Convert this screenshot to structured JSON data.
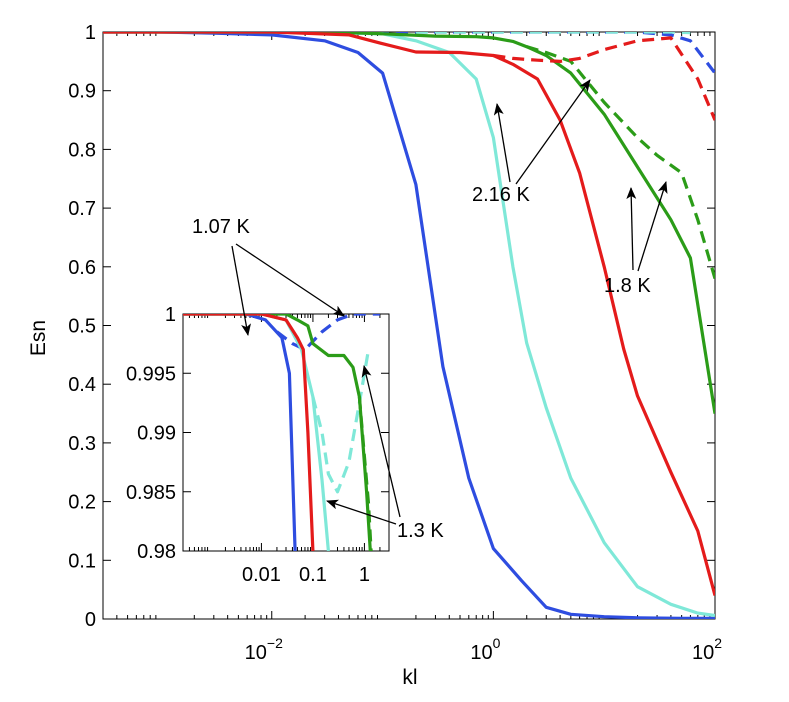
{
  "chart_data": [
    {
      "type": "line",
      "name": "main",
      "xscale": "log",
      "xlim": [
        0.0003,
        100
      ],
      "ylim": [
        0,
        1
      ],
      "xlabel": "kl",
      "ylabel": "Esn",
      "xticks": [
        {
          "value": 0.01,
          "base": "10",
          "exp": "−2"
        },
        {
          "value": 1,
          "base": "10",
          "exp": "0"
        },
        {
          "value": 100,
          "base": "10",
          "exp": "2"
        }
      ],
      "yticks": [
        {
          "value": 0,
          "label": "0"
        },
        {
          "value": 0.1,
          "label": "0.1"
        },
        {
          "value": 0.2,
          "label": "0.2"
        },
        {
          "value": 0.3,
          "label": "0.3"
        },
        {
          "value": 0.4,
          "label": "0.4"
        },
        {
          "value": 0.5,
          "label": "0.5"
        },
        {
          "value": 0.6,
          "label": "0.6"
        },
        {
          "value": 0.7,
          "label": "0.7"
        },
        {
          "value": 0.8,
          "label": "0.8"
        },
        {
          "value": 0.9,
          "label": "0.9"
        },
        {
          "value": 1,
          "label": "1"
        }
      ],
      "series": [
        {
          "name": "1.07 K solid",
          "color": "#2e4de0",
          "dash": false,
          "x": [
            0.0003,
            0.001,
            0.003,
            0.01,
            0.03,
            0.06,
            0.1,
            0.2,
            0.35,
            0.6,
            1.0,
            1.8,
            3,
            5,
            10,
            20,
            50,
            100
          ],
          "y": [
            1.0,
            1.0,
            0.998,
            0.995,
            0.985,
            0.965,
            0.93,
            0.74,
            0.43,
            0.24,
            0.12,
            0.065,
            0.02,
            0.008,
            0.004,
            0.002,
            0.001,
            0.001
          ]
        },
        {
          "name": "1.07 K dashed",
          "color": "#2e4de0",
          "dash": true,
          "x": [
            0.06,
            0.1,
            0.2,
            0.5,
            1,
            2,
            5,
            10,
            20,
            40,
            60,
            100
          ],
          "y": [
            0.998,
            0.999,
            1.0,
            1.0,
            1.0,
            1.0,
            1.0,
            1.0,
            1.0,
            0.995,
            0.985,
            0.93
          ]
        },
        {
          "name": "1.3 K solid",
          "color": "#7fe8d8",
          "dash": false,
          "x": [
            0.0003,
            0.01,
            0.03,
            0.1,
            0.2,
            0.4,
            0.7,
            1.0,
            1.5,
            2,
            3,
            5,
            10,
            20,
            40,
            70,
            100
          ],
          "y": [
            1.0,
            1.0,
            0.999,
            0.997,
            0.985,
            0.965,
            0.92,
            0.82,
            0.6,
            0.47,
            0.36,
            0.24,
            0.13,
            0.055,
            0.025,
            0.01,
            0.006
          ]
        },
        {
          "name": "1.3 K dashed",
          "color": "#7fe8d8",
          "dash": true,
          "x": [
            0.2,
            0.5,
            1,
            2,
            5,
            10,
            20,
            40,
            60
          ],
          "y": [
            1.0,
            1.0,
            1.0,
            1.0,
            1.0,
            1.0,
            1.0,
            1.0,
            0.999
          ]
        },
        {
          "name": "1.8 K solid",
          "color": "#2b9c18",
          "dash": false,
          "x": [
            0.0003,
            0.01,
            0.05,
            0.1,
            0.3,
            0.7,
            1.0,
            1.5,
            2,
            3,
            5,
            10,
            20,
            40,
            60,
            100
          ],
          "y": [
            1.0,
            1.0,
            0.999,
            0.997,
            0.993,
            0.992,
            0.99,
            0.984,
            0.975,
            0.96,
            0.93,
            0.86,
            0.77,
            0.68,
            0.615,
            0.35
          ]
        },
        {
          "name": "1.8 K dashed",
          "color": "#2b9c18",
          "dash": true,
          "x": [
            2,
            3,
            5,
            10,
            20,
            30,
            50,
            70,
            100
          ],
          "y": [
            0.975,
            0.965,
            0.95,
            0.88,
            0.82,
            0.79,
            0.76,
            0.68,
            0.58
          ]
        },
        {
          "name": "2.16 K solid",
          "color": "#e41b1b",
          "dash": false,
          "x": [
            0.0003,
            0.01,
            0.05,
            0.1,
            0.2,
            0.5,
            1,
            1.5,
            2.5,
            4,
            6,
            10,
            15,
            20,
            40,
            70,
            100
          ],
          "y": [
            1.0,
            1.0,
            0.995,
            0.98,
            0.966,
            0.965,
            0.96,
            0.945,
            0.92,
            0.85,
            0.76,
            0.6,
            0.46,
            0.38,
            0.25,
            0.15,
            0.04
          ]
        },
        {
          "name": "2.16 K dashed",
          "color": "#e41b1b",
          "dash": true,
          "x": [
            1,
            1.5,
            2.5,
            4,
            6,
            10,
            20,
            40,
            70,
            100
          ],
          "y": [
            0.96,
            0.955,
            0.952,
            0.95,
            0.955,
            0.97,
            0.985,
            0.99,
            0.92,
            0.85
          ]
        }
      ],
      "annotations": [
        {
          "text": "1.07 K"
        },
        {
          "text": "2.16 K"
        },
        {
          "text": "1.8 K"
        },
        {
          "text": "1.3 K"
        }
      ]
    },
    {
      "type": "line",
      "name": "inset",
      "xscale": "log",
      "xlim": [
        0.0003,
        3
      ],
      "ylim": [
        0.98,
        1.0
      ],
      "xticks": [
        {
          "value": 0.01,
          "label": "0.01"
        },
        {
          "value": 0.1,
          "label": "0.1"
        },
        {
          "value": 1,
          "label": "1"
        }
      ],
      "yticks": [
        {
          "value": 0.98,
          "label": "0.98"
        },
        {
          "value": 0.985,
          "label": "0.985"
        },
        {
          "value": 0.99,
          "label": "0.99"
        },
        {
          "value": 0.995,
          "label": "0.995"
        },
        {
          "value": 1,
          "label": "1"
        }
      ],
      "series": [
        {
          "name": "1.07 K solid",
          "color": "#2e4de0",
          "dash": false,
          "x": [
            0.0003,
            0.005,
            0.012,
            0.025,
            0.035,
            0.045
          ],
          "y": [
            1.0,
            1.0,
            0.9995,
            0.998,
            0.995,
            0.98
          ]
        },
        {
          "name": "1.07 K dashed",
          "color": "#2e4de0",
          "dash": true,
          "x": [
            0.02,
            0.04,
            0.07,
            0.15,
            0.3,
            0.6,
            1.0,
            2.0
          ],
          "y": [
            0.9985,
            0.9975,
            0.997,
            0.9985,
            0.9995,
            1.0,
            1.0,
            1.0
          ]
        },
        {
          "name": "1.3 K solid",
          "color": "#7fe8d8",
          "dash": false,
          "x": [
            0.0003,
            0.01,
            0.03,
            0.06,
            0.1,
            0.15,
            0.2
          ],
          "y": [
            1.0,
            1.0,
            0.9995,
            0.997,
            0.993,
            0.986,
            0.98
          ]
        },
        {
          "name": "1.3 K dashed",
          "color": "#7fe8d8",
          "dash": true,
          "x": [
            0.1,
            0.15,
            0.2,
            0.3,
            0.5,
            0.8,
            1.2
          ],
          "y": [
            0.993,
            0.99,
            0.9865,
            0.985,
            0.9875,
            0.9925,
            0.997
          ]
        },
        {
          "name": "1.8 K solid",
          "color": "#2b9c18",
          "dash": false,
          "x": [
            0.0003,
            0.01,
            0.03,
            0.05,
            0.08,
            0.1,
            0.2,
            0.4,
            0.6,
            0.8,
            1.1,
            1.3
          ],
          "y": [
            1.0,
            1.0,
            1.0,
            0.9995,
            0.999,
            0.9975,
            0.9965,
            0.9965,
            0.9955,
            0.993,
            0.985,
            0.98
          ]
        },
        {
          "name": "1.8 K dashed",
          "color": "#2b9c18",
          "dash": true,
          "x": [
            0.8,
            1.0,
            1.2,
            1.35
          ],
          "y": [
            0.993,
            0.988,
            0.984,
            0.98
          ]
        },
        {
          "name": "2.16 K solid",
          "color": "#e41b1b",
          "dash": false,
          "x": [
            0.0003,
            0.01,
            0.03,
            0.05,
            0.065,
            0.08,
            0.1
          ],
          "y": [
            1.0,
            1.0,
            0.9995,
            0.998,
            0.997,
            0.99,
            0.98
          ]
        }
      ]
    }
  ]
}
